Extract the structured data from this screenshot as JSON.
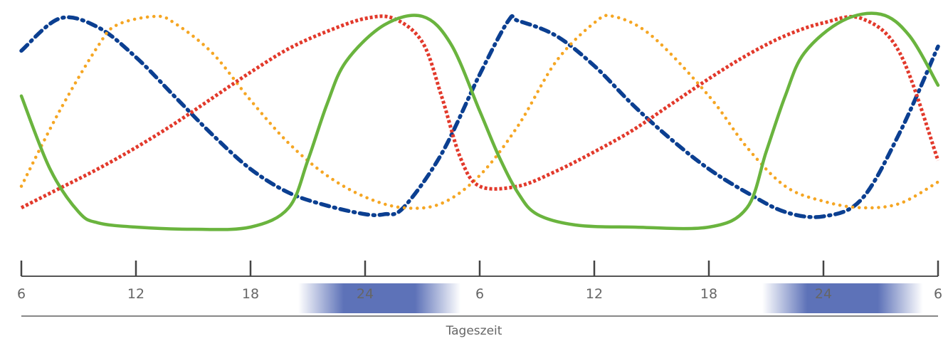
{
  "chart_data": {
    "type": "line",
    "title": "",
    "xlabel": "Tageszeit",
    "ylabel": "",
    "grid": false,
    "legend": "none",
    "x_unit": "hours",
    "xlim": [
      6,
      54
    ],
    "ylim": [
      0,
      1
    ],
    "x_ticks": [
      {
        "x": 6,
        "label": "6"
      },
      {
        "x": 12,
        "label": "12"
      },
      {
        "x": 18,
        "label": "18"
      },
      {
        "x": 24,
        "label": "24"
      },
      {
        "x": 30,
        "label": "6"
      },
      {
        "x": 36,
        "label": "12"
      },
      {
        "x": 42,
        "label": "18"
      },
      {
        "x": 48,
        "label": "24"
      },
      {
        "x": 54,
        "label": "6"
      }
    ],
    "night_bands": [
      {
        "from": 20.5,
        "to": 29
      },
      {
        "from": 44.8,
        "to": 53.2
      }
    ],
    "night_color": "#4b62b0",
    "series": [
      {
        "style": "dash-dot",
        "color": "#0b3f91",
        "x": [
          6,
          8,
          10,
          12,
          14,
          16,
          18,
          20,
          22,
          24,
          25,
          26,
          28,
          30,
          31.5,
          32,
          34,
          36,
          38,
          40,
          42,
          44,
          46,
          48,
          50,
          52,
          54
        ],
        "y": [
          0.83,
          0.98,
          0.94,
          0.8,
          0.62,
          0.44,
          0.28,
          0.17,
          0.11,
          0.07,
          0.07,
          0.1,
          0.35,
          0.72,
          0.97,
          0.97,
          0.9,
          0.76,
          0.58,
          0.42,
          0.28,
          0.17,
          0.08,
          0.06,
          0.14,
          0.45,
          0.85
        ]
      },
      {
        "style": "dotted",
        "color": "#f5a623",
        "x": [
          6,
          8,
          10,
          11,
          13,
          14,
          16,
          18,
          20,
          22,
          24,
          26,
          28,
          30,
          32,
          34,
          36,
          37,
          39,
          42,
          44,
          46,
          48,
          50,
          52,
          54
        ],
        "y": [
          0.2,
          0.55,
          0.85,
          0.95,
          0.99,
          0.96,
          0.82,
          0.6,
          0.4,
          0.25,
          0.15,
          0.1,
          0.12,
          0.25,
          0.48,
          0.78,
          0.96,
          0.99,
          0.9,
          0.62,
          0.38,
          0.2,
          0.13,
          0.1,
          0.12,
          0.22
        ]
      },
      {
        "style": "dense-dash",
        "color": "#e2392b",
        "x": [
          6,
          8,
          10,
          12,
          14,
          16,
          18,
          20,
          22,
          24,
          25.5,
          27,
          28,
          29,
          30,
          32,
          34,
          36,
          38,
          40,
          42,
          44,
          46,
          48,
          50,
          52,
          54
        ],
        "y": [
          0.1,
          0.19,
          0.28,
          0.38,
          0.49,
          0.61,
          0.73,
          0.84,
          0.92,
          0.98,
          0.98,
          0.87,
          0.62,
          0.33,
          0.2,
          0.2,
          0.27,
          0.36,
          0.46,
          0.58,
          0.7,
          0.81,
          0.9,
          0.96,
          0.98,
          0.82,
          0.32
        ]
      },
      {
        "style": "solid",
        "color": "#6ab43e",
        "x": [
          6,
          7.5,
          9,
          10,
          12,
          15,
          18,
          20,
          21,
          22,
          23,
          25,
          27,
          28.5,
          30,
          31,
          32,
          33,
          35,
          38,
          42,
          44,
          45,
          46,
          47,
          49,
          51,
          52.5,
          54
        ],
        "y": [
          0.62,
          0.28,
          0.08,
          0.03,
          0.01,
          0.0,
          0.01,
          0.1,
          0.32,
          0.58,
          0.78,
          0.95,
          0.99,
          0.86,
          0.55,
          0.34,
          0.17,
          0.07,
          0.02,
          0.01,
          0.01,
          0.1,
          0.36,
          0.62,
          0.82,
          0.97,
          1.0,
          0.9,
          0.67
        ]
      }
    ]
  }
}
